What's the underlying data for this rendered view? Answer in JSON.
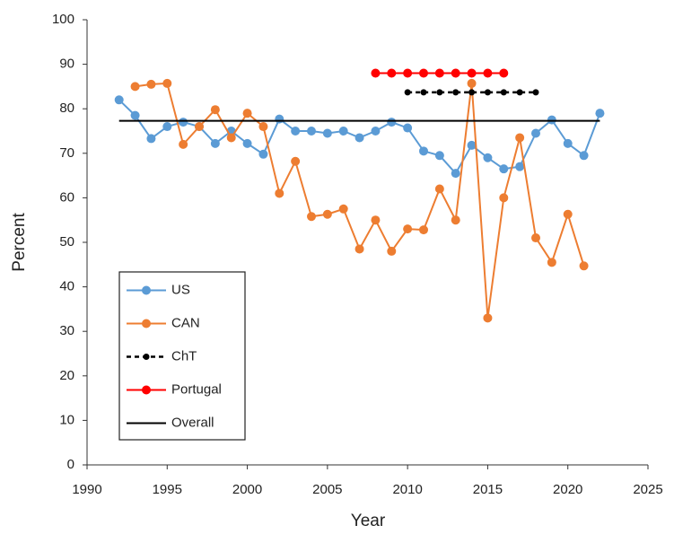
{
  "chart_data": {
    "type": "line",
    "x_label": "Year",
    "y_label": "Percent",
    "x": [
      1992,
      1993,
      1994,
      1995,
      1996,
      1997,
      1998,
      1999,
      2000,
      2001,
      2002,
      2003,
      2004,
      2005,
      2006,
      2007,
      2008,
      2009,
      2010,
      2011,
      2012,
      2013,
      2014,
      2015,
      2016,
      2017,
      2018,
      2019,
      2020,
      2021,
      2022
    ],
    "series": [
      {
        "name": "US",
        "color": "#5b9bd5",
        "marker": true,
        "dashed": false,
        "values": [
          82,
          78.5,
          73.3,
          76,
          77,
          76,
          72.2,
          75,
          72.2,
          69.8,
          77.7,
          75,
          75,
          74.5,
          75,
          73.5,
          75,
          77,
          75.7,
          70.5,
          69.5,
          65.5,
          71.8,
          69,
          66.5,
          67,
          74.5,
          77.5,
          72.2,
          69.5,
          79
        ]
      },
      {
        "name": "CAN",
        "color": "#ed7d31",
        "marker": true,
        "dashed": false,
        "values": [
          null,
          85,
          85.5,
          85.7,
          72,
          76,
          79.8,
          73.5,
          79,
          76,
          61,
          68.2,
          55.8,
          56.3,
          57.5,
          48.5,
          55,
          48,
          53,
          52.8,
          62,
          55,
          85.7,
          33,
          60,
          73.5,
          51,
          45.5,
          56.3,
          44.7,
          null
        ]
      },
      {
        "name": "ChT",
        "color": "#000000",
        "marker": true,
        "dashed": true,
        "values": [
          null,
          null,
          null,
          null,
          null,
          null,
          null,
          null,
          null,
          null,
          null,
          null,
          null,
          null,
          null,
          null,
          null,
          null,
          83.7,
          83.7,
          83.7,
          83.7,
          83.7,
          83.7,
          83.7,
          83.7,
          83.7,
          null,
          null,
          null,
          null
        ]
      },
      {
        "name": "Portugal",
        "color": "#ff0000",
        "marker": true,
        "dashed": false,
        "values": [
          null,
          null,
          null,
          null,
          null,
          null,
          null,
          null,
          null,
          null,
          null,
          null,
          null,
          null,
          null,
          null,
          88,
          88,
          88,
          88,
          88,
          88,
          88,
          88,
          88,
          null,
          null,
          null,
          null,
          null,
          null
        ]
      },
      {
        "name": "Overall",
        "color": "#000000",
        "marker": false,
        "dashed": false,
        "values": [
          77.3,
          77.3,
          77.3,
          77.3,
          77.3,
          77.3,
          77.3,
          77.3,
          77.3,
          77.3,
          77.3,
          77.3,
          77.3,
          77.3,
          77.3,
          77.3,
          77.3,
          77.3,
          77.3,
          77.3,
          77.3,
          77.3,
          77.3,
          77.3,
          77.3,
          77.3,
          77.3,
          77.3,
          77.3,
          77.3,
          77.3
        ]
      }
    ],
    "xlim": [
      1990,
      2025
    ],
    "xticks": [
      1990,
      1995,
      2000,
      2005,
      2010,
      2015,
      2020,
      2025
    ],
    "ylim": [
      0,
      100
    ],
    "yticks": [
      0,
      10,
      20,
      30,
      40,
      50,
      60,
      70,
      80,
      90,
      100
    ],
    "grid": false,
    "legend": "lower-left"
  }
}
